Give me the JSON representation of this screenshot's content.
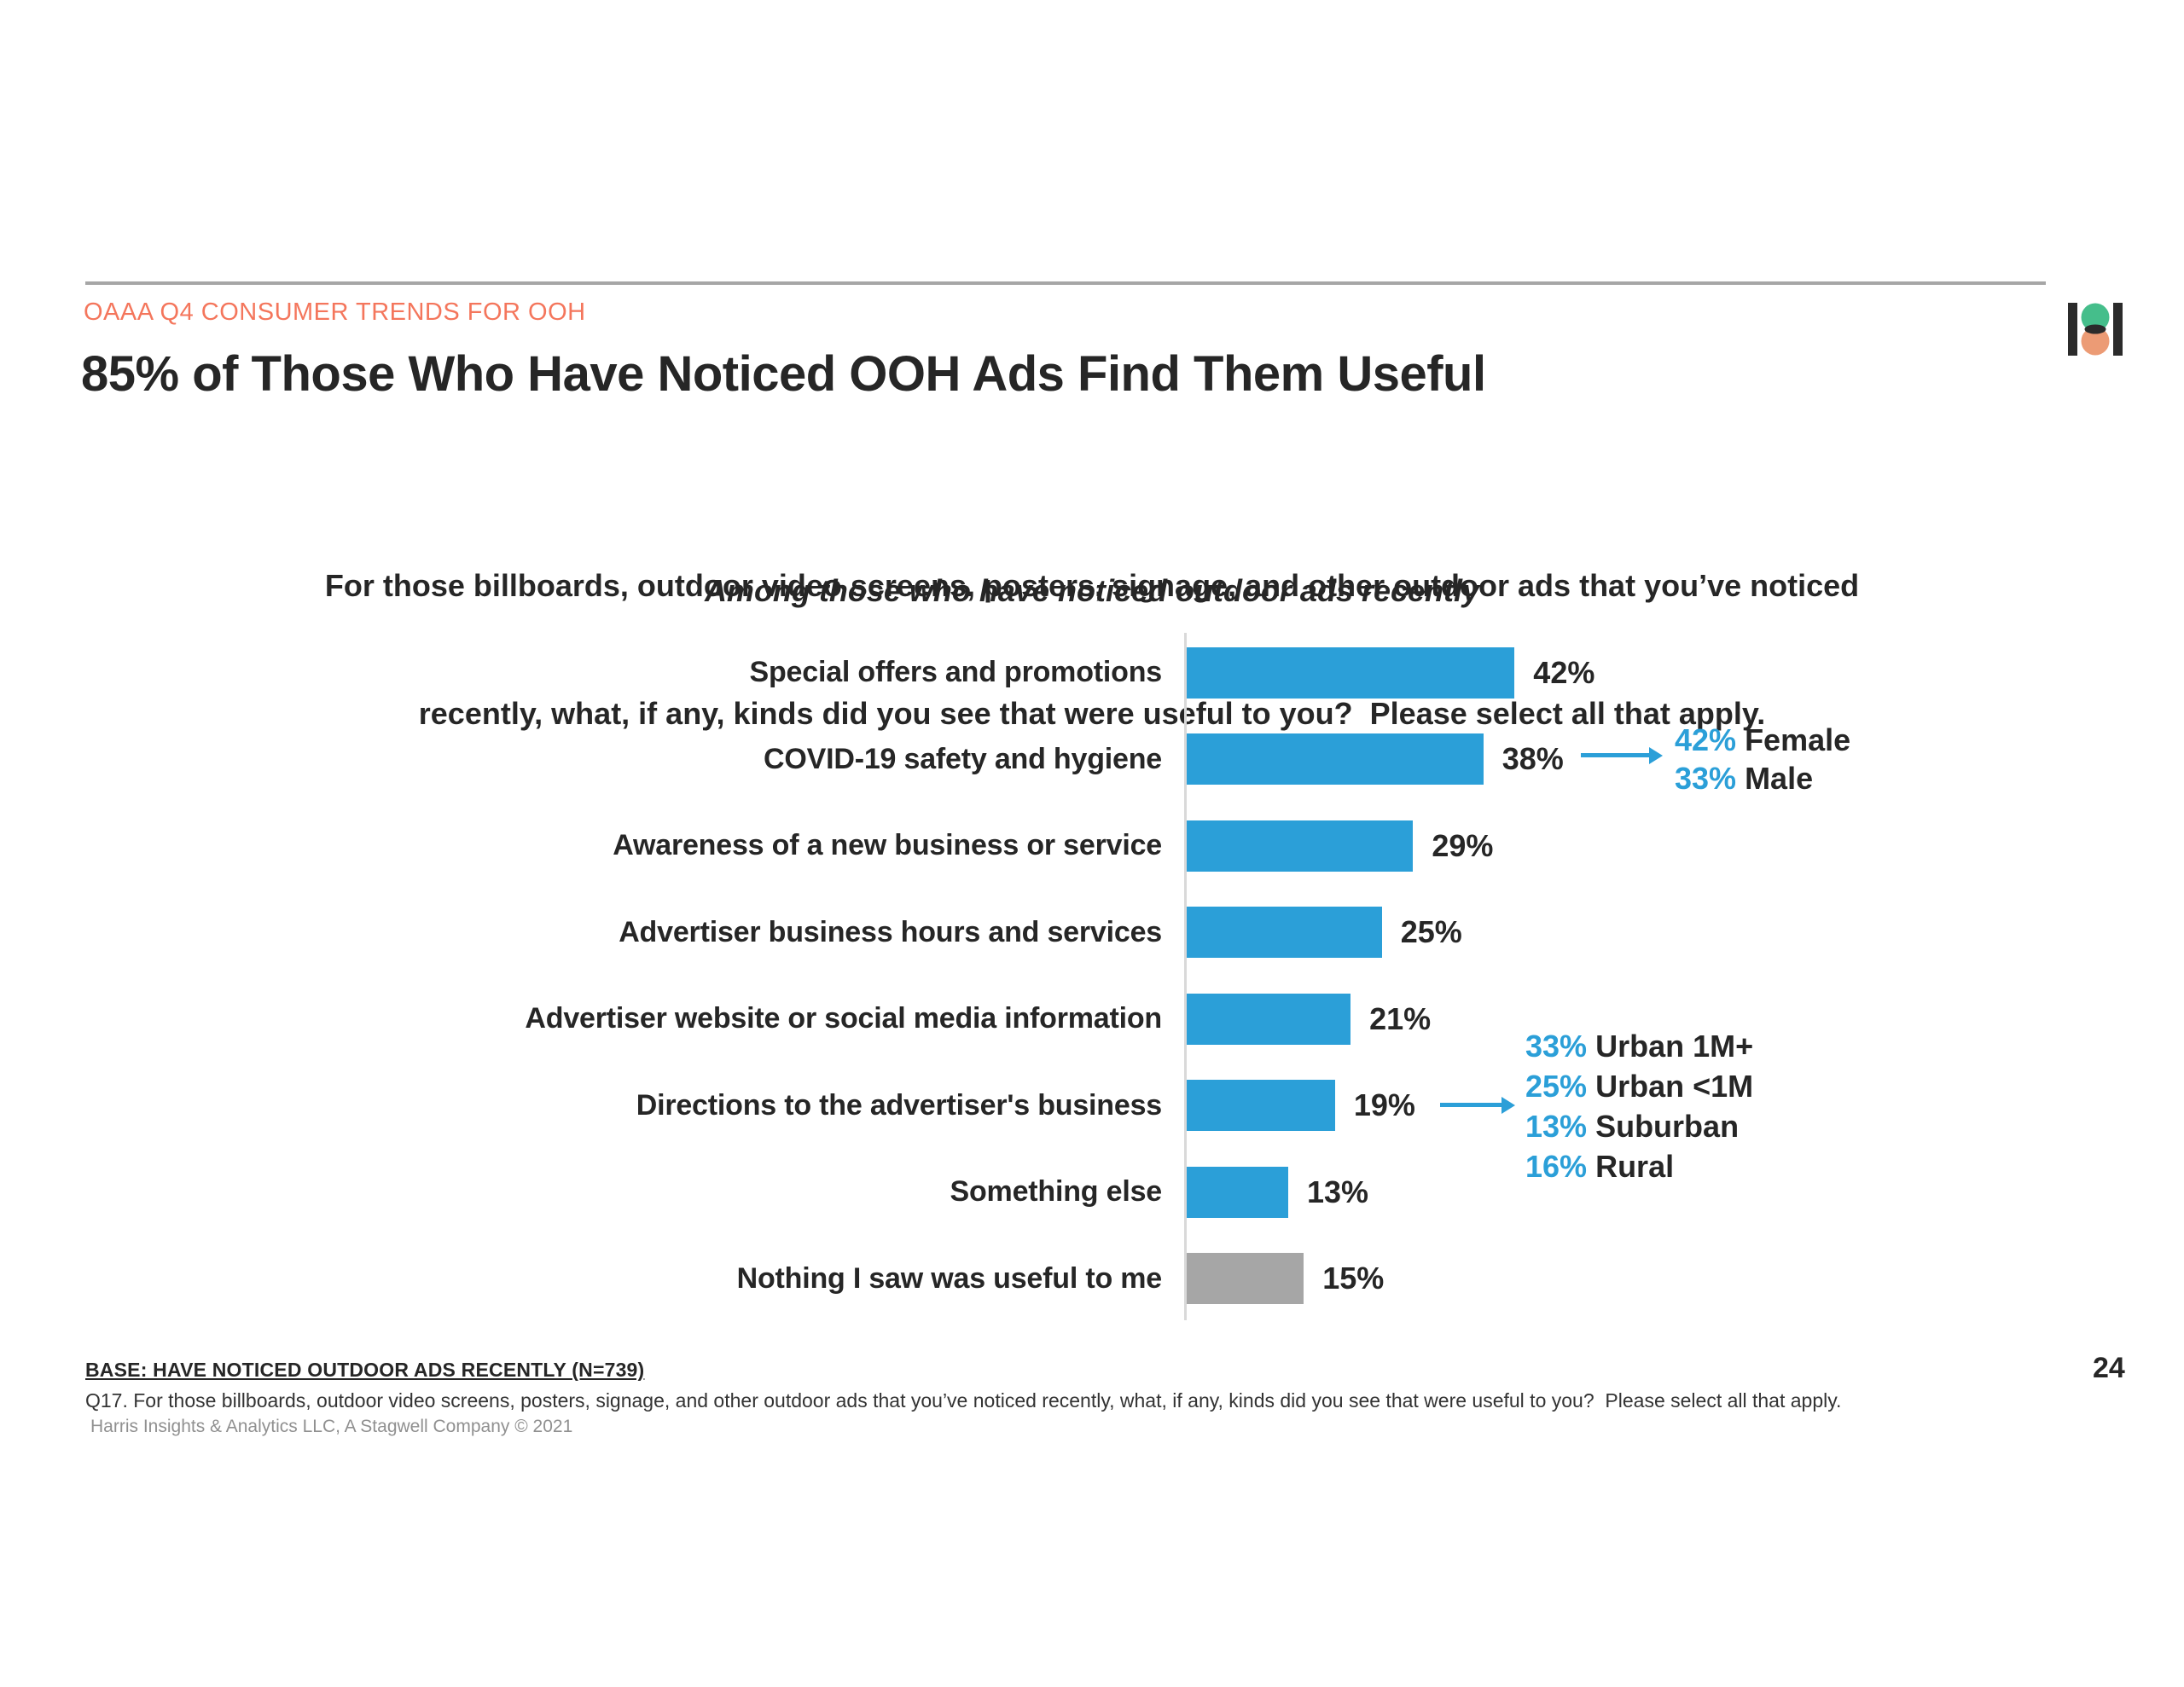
{
  "colors": {
    "accent_blue": "#2B9FD8",
    "bar_gray": "#A6A6A6",
    "accent_coral": "#F4765C",
    "axis_gray": "#D9D9D9",
    "logo_green": "#45BE8B",
    "logo_orange": "#EC9B75",
    "logo_dark": "#2B2B2B"
  },
  "header": {
    "eyebrow": "OAAA Q4 CONSUMER TRENDS FOR OOH",
    "title": "85% of Those Who Have Noticed OOH Ads Find Them Useful"
  },
  "subtitle": {
    "question_line1": "For those billboards, outdoor video screens, posters, signage, and other outdoor ads that you’ve noticed",
    "question_line2": "recently, what, if any, kinds did you see that were useful to you?  Please select all that apply.",
    "population": "Among those who have noticed outdoor ads recently"
  },
  "chart_data": {
    "type": "bar",
    "orientation": "horizontal",
    "categories": [
      "Special offers and promotions",
      "COVID-19 safety and hygiene",
      "Awareness of a new business or service",
      "Advertiser business hours and services",
      "Advertiser website or social media information",
      "Directions to the advertiser's business",
      "Something else",
      "Nothing I saw was useful to me"
    ],
    "values": [
      42,
      38,
      29,
      25,
      21,
      19,
      13,
      15
    ],
    "value_labels": [
      "42%",
      "38%",
      "29%",
      "25%",
      "21%",
      "19%",
      "13%",
      "15%"
    ],
    "bar_colors": [
      "#2B9FD8",
      "#2B9FD8",
      "#2B9FD8",
      "#2B9FD8",
      "#2B9FD8",
      "#2B9FD8",
      "#2B9FD8",
      "#A6A6A6"
    ],
    "xlim": [
      0,
      47
    ],
    "unit": "%",
    "grid": false,
    "legend": "none",
    "annotations": [
      {
        "target_bar": "COVID-19 safety and hygiene",
        "entries": [
          {
            "value": "42%",
            "label": "Female"
          },
          {
            "value": "33%",
            "label": "Male"
          }
        ]
      },
      {
        "target_bar": "Directions to the advertiser's business",
        "entries": [
          {
            "value": "33%",
            "label": "Urban 1M+"
          },
          {
            "value": "25%",
            "label": "Urban <1M"
          },
          {
            "value": "13%",
            "label": "Suburban"
          },
          {
            "value": "16%",
            "label": "Rural"
          }
        ]
      }
    ]
  },
  "footer": {
    "base": "BASE: HAVE NOTICED OUTDOOR ADS RECENTLY (N=739)",
    "question": "Q17. For those billboards, outdoor video screens, posters, signage, and other outdoor ads that you’ve noticed recently, what, if any, kinds did you see that were useful to you?  Please select all that apply.",
    "source": "Harris Insights & Analytics LLC, A Stagwell Company © 2021",
    "page_number": "24"
  }
}
